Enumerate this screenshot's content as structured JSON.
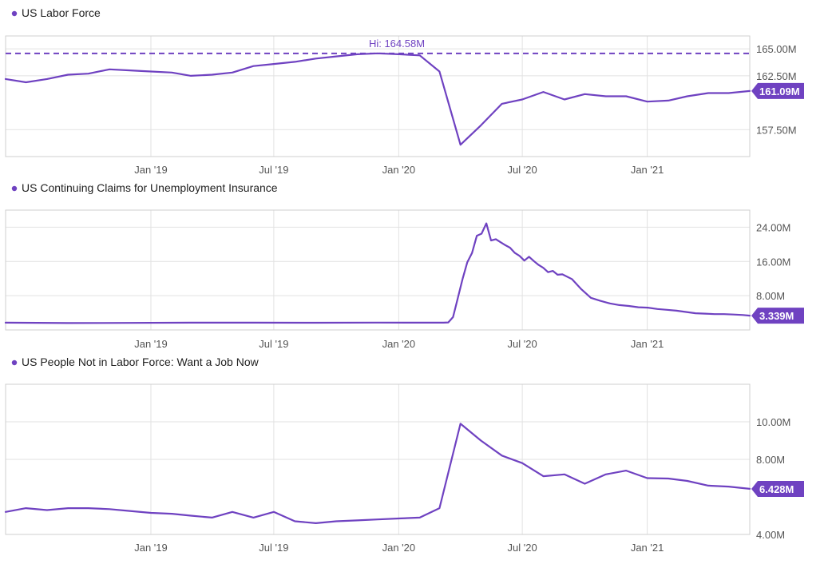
{
  "colors": {
    "series": "#6f42c1",
    "grid": "#e2e2e2",
    "frame": "#cfcfcf",
    "text": "#222222",
    "tick": "#555555"
  },
  "x_axis": {
    "start": "2018-06-01",
    "end": "2021-06-01",
    "ticks": [
      {
        "date": "2019-01-01",
        "label": "Jan '19"
      },
      {
        "date": "2019-07-01",
        "label": "Jul '19"
      },
      {
        "date": "2020-01-01",
        "label": "Jan '20"
      },
      {
        "date": "2020-07-01",
        "label": "Jul '20"
      },
      {
        "date": "2021-01-01",
        "label": "Jan '21"
      }
    ]
  },
  "chart_data": [
    {
      "type": "line",
      "title": "US Labor Force",
      "legend_marker": "dot",
      "ylim": [
        155.0,
        166.2
      ],
      "y_ticks": [
        {
          "value": 165.0,
          "label": "165.00M"
        },
        {
          "value": 162.5,
          "label": "162.50M"
        },
        {
          "value": 157.5,
          "label": "157.50M"
        }
      ],
      "hi": {
        "value": 164.58,
        "label": "Hi: 164.58M"
      },
      "last_value_label": "161.09M",
      "series": [
        {
          "dates": [
            "2018-06-01",
            "2018-07-01",
            "2018-08-01",
            "2018-09-01",
            "2018-10-01",
            "2018-11-01",
            "2018-12-01",
            "2019-01-01",
            "2019-02-01",
            "2019-03-01",
            "2019-04-01",
            "2019-05-01",
            "2019-06-01",
            "2019-07-01",
            "2019-08-01",
            "2019-09-01",
            "2019-10-01",
            "2019-11-01",
            "2019-12-01",
            "2020-01-01",
            "2020-02-01",
            "2020-03-01",
            "2020-04-01",
            "2020-05-01",
            "2020-06-01",
            "2020-07-01",
            "2020-08-01",
            "2020-09-01",
            "2020-10-01",
            "2020-11-01",
            "2020-12-01",
            "2021-01-01",
            "2021-02-01",
            "2021-03-01",
            "2021-04-01",
            "2021-05-01",
            "2021-06-01"
          ],
          "values": [
            162.2,
            161.9,
            162.2,
            162.6,
            162.7,
            163.1,
            163.0,
            162.9,
            162.8,
            162.5,
            162.6,
            162.8,
            163.4,
            163.6,
            163.8,
            164.1,
            164.3,
            164.5,
            164.58,
            164.5,
            164.4,
            162.9,
            156.1,
            157.9,
            159.9,
            160.3,
            161.0,
            160.3,
            160.8,
            160.6,
            160.6,
            160.1,
            160.2,
            160.6,
            160.9,
            160.9,
            161.09
          ]
        }
      ]
    },
    {
      "type": "line",
      "title": "US Continuing Claims for Unemployment Insurance",
      "legend_marker": "dot",
      "ylim": [
        0.0,
        28.0
      ],
      "y_ticks": [
        {
          "value": 24.0,
          "label": "24.00M"
        },
        {
          "value": 16.0,
          "label": "16.00M"
        },
        {
          "value": 8.0,
          "label": "8.00M"
        }
      ],
      "last_value_label": "3.339M",
      "series": [
        {
          "dates": [
            "2018-06-01",
            "2018-09-01",
            "2018-12-01",
            "2019-03-01",
            "2019-06-01",
            "2019-09-01",
            "2019-12-01",
            "2020-03-07",
            "2020-03-14",
            "2020-03-21",
            "2020-03-28",
            "2020-04-04",
            "2020-04-11",
            "2020-04-18",
            "2020-04-25",
            "2020-05-02",
            "2020-05-09",
            "2020-05-16",
            "2020-05-23",
            "2020-05-30",
            "2020-06-06",
            "2020-06-13",
            "2020-06-20",
            "2020-06-27",
            "2020-07-04",
            "2020-07-11",
            "2020-07-18",
            "2020-07-25",
            "2020-08-01",
            "2020-08-08",
            "2020-08-15",
            "2020-08-22",
            "2020-08-29",
            "2020-09-12",
            "2020-09-26",
            "2020-10-10",
            "2020-10-24",
            "2020-11-07",
            "2020-11-21",
            "2020-12-05",
            "2020-12-19",
            "2021-01-02",
            "2021-01-16",
            "2021-01-30",
            "2021-02-13",
            "2021-02-27",
            "2021-03-13",
            "2021-03-27",
            "2021-04-10",
            "2021-04-24",
            "2021-05-08",
            "2021-05-22",
            "2021-06-01"
          ],
          "values": [
            1.7,
            1.6,
            1.65,
            1.7,
            1.7,
            1.68,
            1.72,
            1.7,
            1.75,
            3.0,
            7.4,
            11.9,
            15.8,
            18.0,
            22.0,
            22.5,
            24.9,
            20.9,
            21.2,
            20.5,
            19.8,
            19.2,
            18.0,
            17.3,
            16.2,
            17.1,
            16.1,
            15.2,
            14.5,
            13.5,
            13.8,
            12.9,
            13.0,
            11.9,
            9.5,
            7.5,
            6.8,
            6.2,
            5.8,
            5.6,
            5.3,
            5.2,
            4.9,
            4.7,
            4.5,
            4.2,
            3.9,
            3.8,
            3.7,
            3.7,
            3.6,
            3.5,
            3.339
          ]
        }
      ]
    },
    {
      "type": "line",
      "title": "US People Not in Labor Force: Want a Job Now",
      "legend_marker": "dot",
      "ylim": [
        4.0,
        12.0
      ],
      "y_ticks": [
        {
          "value": 10.0,
          "label": "10.00M"
        },
        {
          "value": 8.0,
          "label": "8.00M"
        },
        {
          "value": 4.0,
          "label": "4.00M"
        }
      ],
      "last_value_label": "6.428M",
      "series": [
        {
          "dates": [
            "2018-06-01",
            "2018-07-01",
            "2018-08-01",
            "2018-09-01",
            "2018-10-01",
            "2018-11-01",
            "2018-12-01",
            "2019-01-01",
            "2019-02-01",
            "2019-03-01",
            "2019-04-01",
            "2019-05-01",
            "2019-06-01",
            "2019-07-01",
            "2019-08-01",
            "2019-09-01",
            "2019-10-01",
            "2019-11-01",
            "2019-12-01",
            "2020-01-01",
            "2020-02-01",
            "2020-03-01",
            "2020-04-01",
            "2020-05-01",
            "2020-06-01",
            "2020-07-01",
            "2020-08-01",
            "2020-09-01",
            "2020-10-01",
            "2020-11-01",
            "2020-12-01",
            "2021-01-01",
            "2021-02-01",
            "2021-03-01",
            "2021-04-01",
            "2021-05-01",
            "2021-06-01"
          ],
          "values": [
            5.2,
            5.4,
            5.3,
            5.4,
            5.4,
            5.35,
            5.25,
            5.15,
            5.1,
            5.0,
            4.9,
            5.2,
            4.9,
            5.2,
            4.7,
            4.6,
            4.7,
            4.75,
            4.8,
            4.85,
            4.9,
            5.4,
            9.9,
            9.0,
            8.2,
            7.8,
            7.1,
            7.2,
            6.7,
            7.2,
            7.4,
            7.0,
            6.98,
            6.85,
            6.6,
            6.55,
            6.428
          ]
        }
      ]
    }
  ]
}
